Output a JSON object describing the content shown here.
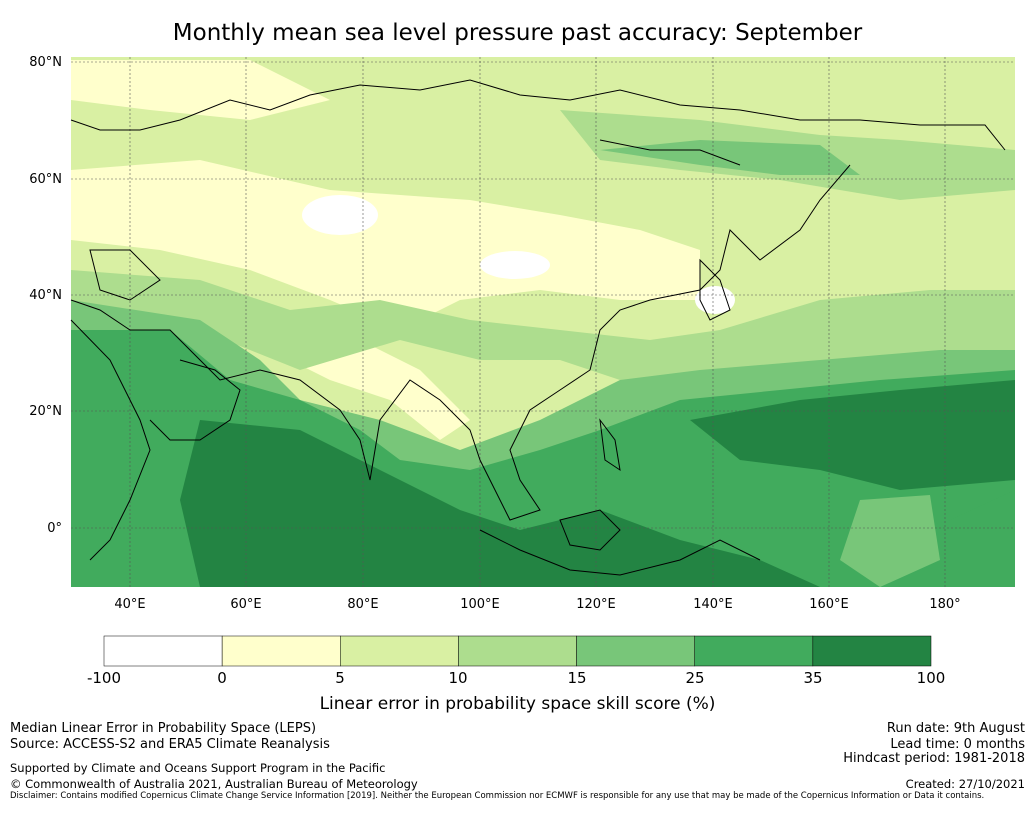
{
  "title": "Monthly mean sea level pressure past accuracy: September",
  "map": {
    "lat_labels": [
      "80°N",
      "60°N",
      "40°N",
      "20°N",
      "0°"
    ],
    "lon_labels": [
      "40°E",
      "60°E",
      "80°E",
      "100°E",
      "120°E",
      "140°E",
      "160°E",
      "180°"
    ],
    "extent": {
      "lon_min": 30,
      "lon_max": 192,
      "lat_min": -10,
      "lat_max": 81
    }
  },
  "colorbar": {
    "title": "Linear error in probability space skill score (%)",
    "ticks": [
      "-100",
      "0",
      "5",
      "10",
      "15",
      "25",
      "35",
      "100"
    ],
    "colors": [
      "#ffffff",
      "#ffffcc",
      "#d9f0a3",
      "#addd8e",
      "#78c679",
      "#41ab5d",
      "#238443"
    ]
  },
  "footer": {
    "left1": "Median Linear Error in Probability Space (LEPS)",
    "left2": "Source: ACCESS-S2 and ERA5 Climate Reanalysis",
    "left3": "Supported by Climate and Oceans Support Program in the Pacific",
    "left4": "© Commonwealth of Australia 2021, Australian Bureau of Meteorology",
    "right1": "Run date: 9th August",
    "right2": "Lead time: 0 months",
    "right3": "Hindcast period: 1981-2018",
    "right4": "Created: 27/10/2021",
    "disclaimer": "Disclaimer: Contains modified Copernicus Climate Change Service Information [2019]. Neither the European Commission nor ECMWF is responsible for any use that may be made of the Copernicus Information or Data it contains."
  }
}
